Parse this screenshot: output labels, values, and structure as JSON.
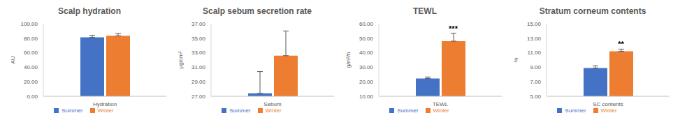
{
  "chart_data": [
    {
      "type": "bar",
      "title": "Scalp hydration",
      "y_label": "AU",
      "categories": [
        "Hydration"
      ],
      "series": [
        {
          "name": "Summer",
          "color": "#4472c4",
          "values": [
            81.2
          ],
          "errors": [
            2.8
          ]
        },
        {
          "name": "Winter",
          "color": "#ed7d31",
          "values": [
            83.4
          ],
          "errors": [
            3.2
          ]
        }
      ],
      "ylim": [
        0,
        100
      ],
      "yticks": [
        {
          "value": 0,
          "label": "0.00"
        },
        {
          "value": 20,
          "label": "20.00"
        },
        {
          "value": 40,
          "label": "40.00"
        },
        {
          "value": 60,
          "label": "60.00"
        },
        {
          "value": 80,
          "label": "80.00"
        },
        {
          "value": 100,
          "label": "100.00"
        }
      ],
      "legend": "bottom"
    },
    {
      "type": "bar",
      "title": "Scalp sebum secretion rate",
      "y_label": "μg/cm²",
      "categories": [
        "Sebum"
      ],
      "series": [
        {
          "name": "Summer",
          "color": "#4472c4",
          "values": [
            27.4
          ],
          "errors": [
            3.0
          ]
        },
        {
          "name": "Winter",
          "color": "#ed7d31",
          "values": [
            32.6
          ],
          "errors": [
            3.4
          ]
        }
      ],
      "ylim": [
        27,
        37
      ],
      "yticks": [
        {
          "value": 27,
          "label": "27.00"
        },
        {
          "value": 29,
          "label": "29.00"
        },
        {
          "value": 31,
          "label": "31.00"
        },
        {
          "value": 33,
          "label": "33.00"
        },
        {
          "value": 35,
          "label": "35.00"
        },
        {
          "value": 37,
          "label": "37.00"
        }
      ],
      "legend": "bottom"
    },
    {
      "type": "bar",
      "title": "TEWL",
      "y_label": "g/m²/h",
      "categories": [
        "TEWL"
      ],
      "series": [
        {
          "name": "Summer",
          "color": "#4472c4",
          "values": [
            22.3
          ],
          "errors": [
            1.0
          ]
        },
        {
          "name": "Winter",
          "color": "#ed7d31",
          "values": [
            48.0
          ],
          "errors": [
            5.5
          ]
        }
      ],
      "ylim": [
        10,
        60
      ],
      "yticks": [
        {
          "value": 10,
          "label": "10.00"
        },
        {
          "value": 20,
          "label": "20.00"
        },
        {
          "value": 30,
          "label": "30.00"
        },
        {
          "value": 40,
          "label": "40.00"
        },
        {
          "value": 50,
          "label": "50.00"
        },
        {
          "value": 60,
          "label": "60.00"
        }
      ],
      "annotation": {
        "text": "***",
        "series": "Winter"
      },
      "legend": "bottom"
    },
    {
      "type": "bar",
      "title": "Stratum corneum contents",
      "y_label": "%",
      "categories": [
        "SC contents"
      ],
      "series": [
        {
          "name": "Summer",
          "color": "#4472c4",
          "values": [
            8.9
          ],
          "errors": [
            0.3
          ]
        },
        {
          "name": "Winter",
          "color": "#ed7d31",
          "values": [
            11.2
          ],
          "errors": [
            0.3
          ]
        }
      ],
      "ylim": [
        5,
        15
      ],
      "yticks": [
        {
          "value": 5,
          "label": "5.00"
        },
        {
          "value": 7,
          "label": "7.00"
        },
        {
          "value": 9,
          "label": "9.00"
        },
        {
          "value": 11,
          "label": "11.00"
        },
        {
          "value": 13,
          "label": "13.00"
        },
        {
          "value": 15,
          "label": "15.00"
        }
      ],
      "annotation": {
        "text": "**",
        "series": "Winter"
      },
      "legend": "bottom"
    }
  ]
}
